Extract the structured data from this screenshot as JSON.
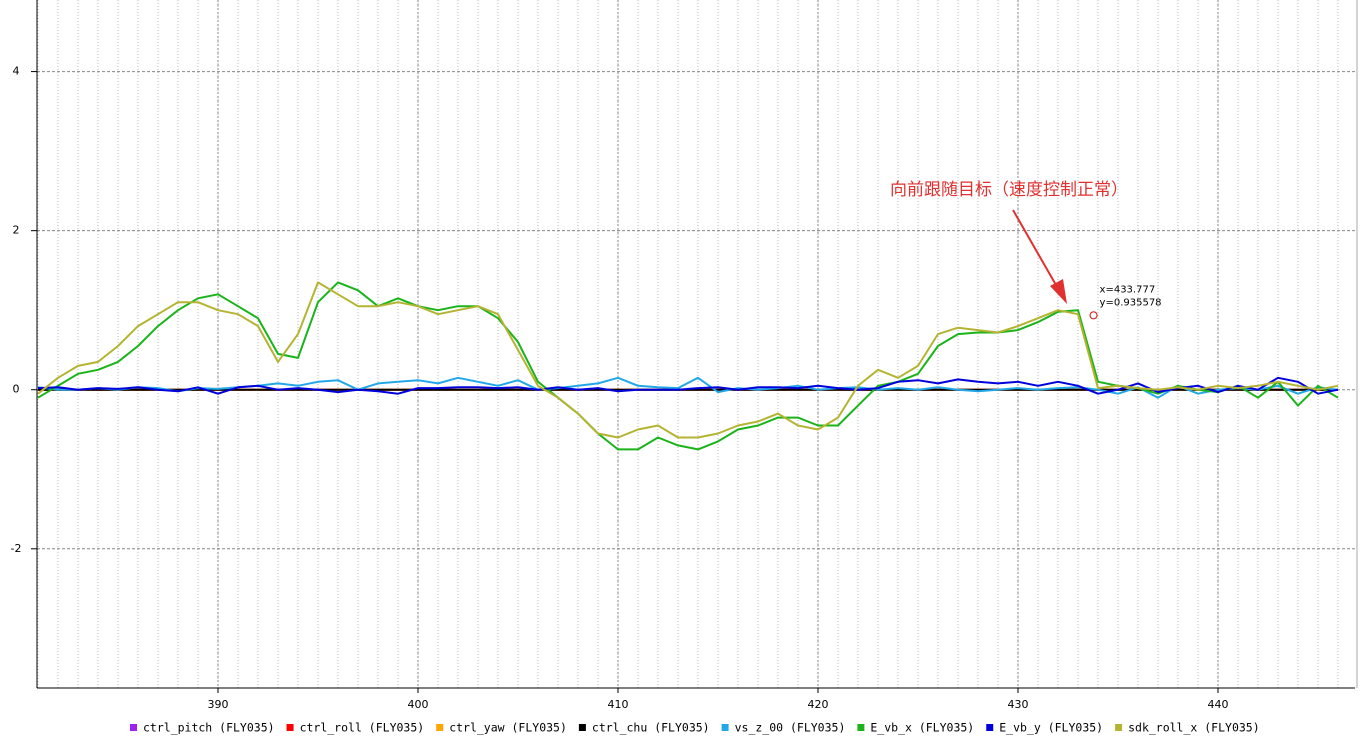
{
  "chart_data": {
    "type": "line",
    "x": [
      381,
      382,
      383,
      384,
      385,
      386,
      387,
      388,
      389,
      390,
      391,
      392,
      393,
      394,
      395,
      396,
      397,
      398,
      399,
      400,
      401,
      402,
      403,
      404,
      405,
      406,
      407,
      408,
      409,
      410,
      411,
      412,
      413,
      414,
      415,
      416,
      417,
      418,
      419,
      420,
      421,
      422,
      423,
      424,
      425,
      426,
      427,
      428,
      429,
      430,
      431,
      432,
      433,
      434,
      435,
      436,
      437,
      438,
      439,
      440,
      441,
      442,
      443,
      444,
      445,
      446
    ],
    "xlim": [
      380.95,
      446.85
    ],
    "xticks": [
      390,
      400,
      410,
      420,
      430,
      440
    ],
    "ylim": [
      -3.75,
      4.9
    ],
    "yticks": [
      -2,
      0,
      2,
      4
    ],
    "grid": true,
    "legend": "bottom",
    "series": [
      {
        "name": "ctrl_pitch (FLY035)",
        "color": "#a020f0",
        "values": [
          0,
          0,
          0,
          0,
          0,
          0,
          0,
          0,
          0,
          0,
          0,
          0,
          0,
          0,
          0,
          0,
          0,
          0,
          0,
          0,
          0,
          0,
          0,
          0,
          0,
          0,
          0,
          0,
          0,
          0,
          0,
          0,
          0,
          0,
          0,
          0,
          0,
          0,
          0,
          0,
          0,
          0,
          0,
          0,
          0,
          0,
          0,
          0,
          0,
          0,
          0,
          0,
          0,
          0,
          0,
          0,
          0,
          0,
          0,
          0,
          0,
          0,
          0,
          0,
          0,
          0
        ]
      },
      {
        "name": "ctrl_roll (FLY035)",
        "color": "#ff0000",
        "values": [
          0,
          0,
          0,
          0,
          0,
          0,
          0,
          0,
          0,
          0,
          0,
          0,
          0,
          0,
          0,
          0,
          0,
          0,
          0,
          0,
          0,
          0,
          0,
          0,
          0,
          0,
          0,
          0,
          0,
          0,
          0,
          0,
          0,
          0,
          0,
          0,
          0,
          0,
          0,
          0,
          0,
          0,
          0,
          0,
          0,
          0,
          0,
          0,
          0,
          0,
          0,
          0,
          0,
          0,
          0,
          0,
          0,
          0,
          0,
          0,
          0,
          0,
          0,
          0,
          0,
          0
        ]
      },
      {
        "name": "ctrl_yaw (FLY035)",
        "color": "#ffa500",
        "values": [
          0,
          0,
          0,
          0,
          0,
          0,
          0,
          0,
          0,
          0,
          0,
          0,
          0,
          0,
          0,
          0,
          0,
          0,
          0,
          0,
          0,
          0,
          0,
          0,
          0,
          0,
          0,
          0,
          0,
          0,
          0,
          0,
          0,
          0,
          0,
          0,
          0,
          0,
          0,
          0,
          0,
          0,
          0,
          0,
          0,
          0,
          0,
          0,
          0,
          0,
          0,
          0,
          0,
          0,
          0,
          0,
          0,
          0,
          0,
          0,
          0,
          0,
          0,
          0,
          0,
          0
        ]
      },
      {
        "name": "ctrl_chu (FLY035)",
        "color": "#000000",
        "values": [
          0,
          0,
          0,
          0,
          0,
          0,
          0,
          0,
          0,
          0,
          0,
          0,
          0,
          0,
          0,
          0,
          0,
          0,
          0,
          0,
          0,
          0,
          0,
          0,
          0,
          0,
          0,
          0,
          0,
          0,
          0,
          0,
          0,
          0,
          0,
          0,
          0,
          0,
          0,
          0,
          0,
          0,
          0,
          0,
          0,
          0,
          0,
          0,
          0,
          0,
          0,
          0,
          0,
          0,
          0,
          0,
          0,
          0,
          0,
          0,
          0,
          0,
          0,
          0,
          0,
          0
        ]
      },
      {
        "name": "vs_z_00 (FLY035)",
        "color": "#22a8e8",
        "values": [
          0.03,
          0,
          0,
          0.02,
          0,
          0.03,
          0.02,
          -0.02,
          0.02,
          0.01,
          0.03,
          0.05,
          0.08,
          0.05,
          0.1,
          0.12,
          0,
          0.08,
          0.1,
          0.12,
          0.08,
          0.15,
          0.1,
          0.05,
          0.12,
          0,
          0.02,
          0.05,
          0.08,
          0.15,
          0.05,
          0.03,
          0.02,
          0.15,
          -0.03,
          0.02,
          0,
          0.02,
          0.05,
          0,
          0.02,
          0.03,
          0,
          0.02,
          0,
          0.03,
          0,
          -0.02,
          0,
          0.02,
          0,
          0.02,
          0.03,
          0,
          -0.05,
          0.03,
          -0.1,
          0.05,
          -0.05,
          0,
          0.02,
          0,
          0.05,
          -0.05,
          0.03,
          0
        ]
      },
      {
        "name": "E_vb_x (FLY035)",
        "color": "#1ab41a",
        "values": [
          -0.1,
          0.05,
          0.2,
          0.25,
          0.35,
          0.55,
          0.8,
          1.0,
          1.15,
          1.2,
          1.05,
          0.9,
          0.45,
          0.4,
          1.1,
          1.35,
          1.25,
          1.05,
          1.15,
          1.05,
          1.0,
          1.05,
          1.05,
          0.9,
          0.6,
          0.1,
          -0.1,
          -0.3,
          -0.55,
          -0.75,
          -0.75,
          -0.6,
          -0.7,
          -0.75,
          -0.65,
          -0.5,
          -0.45,
          -0.35,
          -0.35,
          -0.45,
          -0.45,
          -0.2,
          0.05,
          0.1,
          0.2,
          0.55,
          0.7,
          0.72,
          0.72,
          0.75,
          0.85,
          0.98,
          1.0,
          0.1,
          0.05,
          0.02,
          -0.05,
          0.05,
          0,
          -0.03,
          0.05,
          -0.1,
          0.1,
          -0.2,
          0.05,
          -0.1
        ]
      },
      {
        "name": "E_vb_y (FLY035)",
        "color": "#0000dc",
        "values": [
          0.02,
          0.03,
          0,
          0.02,
          0.01,
          0.03,
          0,
          -0.02,
          0.03,
          -0.05,
          0.03,
          0.05,
          0,
          0.02,
          0,
          -0.03,
          0,
          -0.02,
          -0.05,
          0.02,
          0.02,
          0.03,
          0.03,
          0.02,
          0.03,
          0,
          0.03,
          0,
          0.02,
          -0.02,
          0,
          0,
          0,
          0.02,
          0.03,
          0,
          0.03,
          0.03,
          0.02,
          0.05,
          0.02,
          0,
          0.02,
          0.1,
          0.12,
          0.08,
          0.13,
          0.1,
          0.08,
          0.1,
          0.05,
          0.1,
          0.05,
          -0.05,
          0,
          0.08,
          -0.03,
          0.02,
          0.05,
          -0.03,
          0.05,
          0,
          0.15,
          0.1,
          -0.05,
          0
        ]
      },
      {
        "name": "sdk_roll_x (FLY035)",
        "color": "#b4b432",
        "values": [
          -0.05,
          0.15,
          0.3,
          0.35,
          0.55,
          0.8,
          0.95,
          1.1,
          1.1,
          1.0,
          0.95,
          0.8,
          0.35,
          0.7,
          1.35,
          1.2,
          1.05,
          1.05,
          1.1,
          1.05,
          0.95,
          1.0,
          1.05,
          0.95,
          0.5,
          0.05,
          -0.1,
          -0.3,
          -0.55,
          -0.6,
          -0.5,
          -0.45,
          -0.6,
          -0.6,
          -0.55,
          -0.45,
          -0.4,
          -0.3,
          -0.45,
          -0.5,
          -0.35,
          0.05,
          0.25,
          0.15,
          0.3,
          0.7,
          0.78,
          0.75,
          0.72,
          0.8,
          0.9,
          1.0,
          0.95,
          0.02,
          0.05,
          0.02,
          0,
          0.03,
          0,
          0.05,
          0.02,
          0.05,
          0.1,
          0.05,
          0,
          0.05
        ]
      }
    ],
    "annotation": {
      "text": "向前跟随目标（速度控制正常）",
      "color": "#e03030"
    },
    "marker": {
      "x": 433.777,
      "y": 0.935578,
      "labels": [
        "x=433.777",
        "y=0.935578"
      ]
    }
  }
}
